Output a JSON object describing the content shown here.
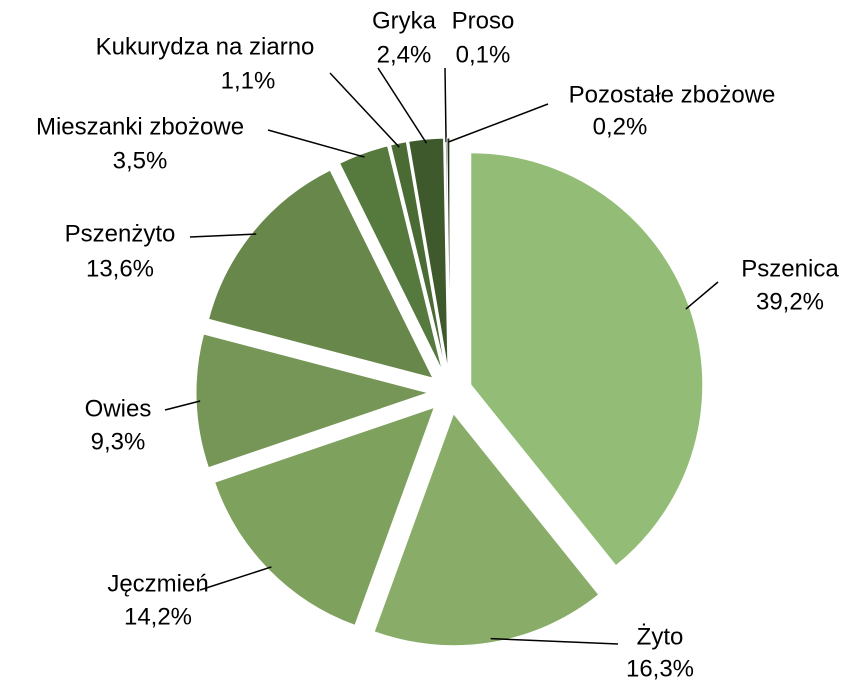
{
  "chart_data": {
    "type": "pie",
    "categories": [
      "Pszenica",
      "Żyto",
      "Jęczmień",
      "Owies",
      "Pszenżyto",
      "Mieszanki zbożowe",
      "Kukurydza na ziarno",
      "Gryka",
      "Proso",
      "Pozostałe zbożowe"
    ],
    "values": [
      39.2,
      16.3,
      14.2,
      9.3,
      13.6,
      3.5,
      1.1,
      2.4,
      0.1,
      0.2
    ],
    "value_labels": [
      "39,2%",
      "16,3%",
      "14,2%",
      "9,3%",
      "13,6%",
      "3,5%",
      "1,1%",
      "2,4%",
      "0,1%",
      "0,2%"
    ],
    "colors": [
      "#93bd76",
      "#89ad69",
      "#7fa15e",
      "#759656",
      "#67884a",
      "#56793e",
      "#4b6b35",
      "#3e592b",
      "#2d4320",
      "#1e2e14"
    ]
  }
}
